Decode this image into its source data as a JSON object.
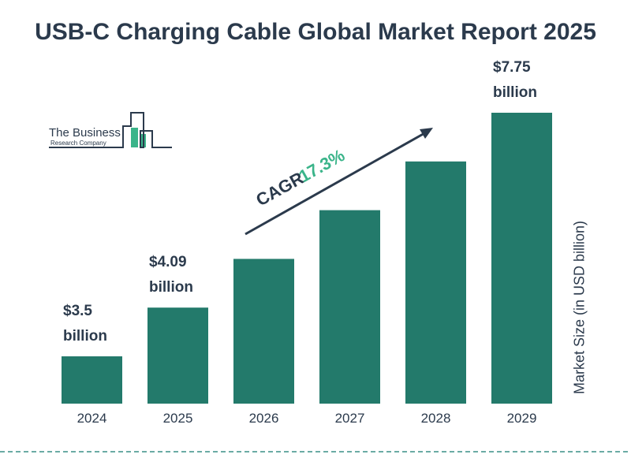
{
  "chart_data": {
    "type": "bar",
    "title": "USB-C Charging Cable Global Market Report 2025",
    "categories": [
      "2024",
      "2025",
      "2026",
      "2027",
      "2028",
      "2029"
    ],
    "values": [
      3.5,
      4.09,
      4.8,
      5.63,
      6.6,
      7.75
    ],
    "data_labels": [
      {
        "index": 0,
        "value": "$3.5",
        "unit": "billion"
      },
      {
        "index": 1,
        "value": "$4.09",
        "unit": "billion"
      },
      {
        "index": 5,
        "value": "$7.75",
        "unit": "billion"
      }
    ],
    "ylabel": "Market Size (in USD billion)",
    "xlabel": "",
    "grid": false,
    "bar_color": "#237a6b",
    "annotation": {
      "label": "CAGR",
      "value": "17.3%",
      "value_color": "#3bb48a"
    }
  },
  "logo": {
    "line1": "The Business",
    "line2": "Research Company"
  }
}
